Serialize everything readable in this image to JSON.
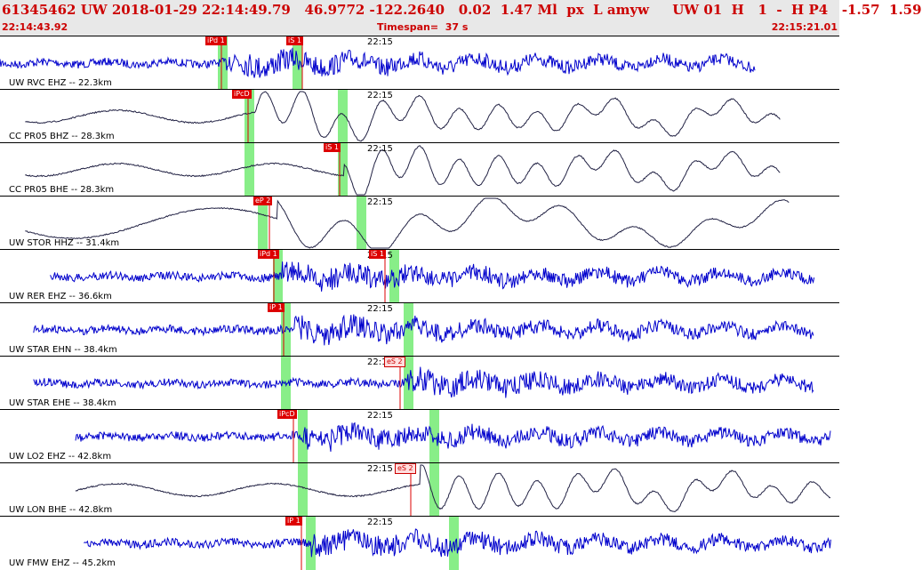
{
  "header": {
    "title": "61345462 UW 2018-01-29 22:14:49.79   46.9772 -122.2640   0.02  1.47 Ml  px  L amyw     UW 01  H   1  -  H P4   -1.57  1.59",
    "start_time": "22:14:43.92",
    "timespan": "Timespan=  37 s",
    "end_time": "22:15:21.01"
  },
  "time_mark": "22:15",
  "colors": {
    "header_text": "#cc0000",
    "trace_blue": "#0000cc",
    "trace_black": "#222244",
    "pick_red": "#dd0000",
    "window_green": "#88ee88"
  },
  "traces": [
    {
      "label": "UW RVC EHZ -- 22.3km",
      "color": "blue",
      "style": "hf",
      "start": 0.0,
      "end": 0.9,
      "onset": 0.27,
      "picks": [
        {
          "text": "iPd 1",
          "pos": 0.245
        },
        {
          "text": "iS 1",
          "pos": 0.341
        }
      ],
      "windows": [
        0.265,
        0.354
      ]
    },
    {
      "label": "CC PR05 BHZ -- 28.3km",
      "color": "black",
      "style": "lf",
      "start": 0.03,
      "end": 0.93,
      "onset": 0.305,
      "picks": [
        {
          "text": "iPcD",
          "pos": 0.277
        }
      ],
      "windows": [
        0.297,
        0.408
      ]
    },
    {
      "label": "CC PR05 BHE -- 28.3km",
      "color": "black",
      "style": "lf",
      "start": 0.03,
      "end": 0.93,
      "onset": 0.41,
      "picks": [
        {
          "text": "iS 1",
          "pos": 0.386
        }
      ],
      "windows": [
        0.297,
        0.408
      ]
    },
    {
      "label": "UW STOR HHZ -- 31.4km",
      "color": "black",
      "style": "vlf",
      "start": 0.03,
      "end": 0.94,
      "onset": 0.33,
      "picks": [
        {
          "text": "eP 2",
          "pos": 0.302
        }
      ],
      "windows": [
        0.312,
        0.43
      ]
    },
    {
      "label": "UW RER EHZ -- 36.6km",
      "color": "blue",
      "style": "hf",
      "start": 0.06,
      "end": 0.97,
      "onset": 0.335,
      "picks": [
        {
          "text": "iPd 1",
          "pos": 0.307
        },
        {
          "text": "iS 1",
          "pos": 0.44
        }
      ],
      "windows": [
        0.33,
        0.469
      ]
    },
    {
      "label": "UW STAR EHN -- 38.4km",
      "color": "blue",
      "style": "hf",
      "start": 0.04,
      "end": 0.97,
      "onset": 0.35,
      "picks": [
        {
          "text": "iP 1",
          "pos": 0.319
        }
      ],
      "windows": [
        0.34,
        0.486
      ]
    },
    {
      "label": "UW STAR EHE -- 38.4km",
      "color": "blue",
      "style": "hf",
      "start": 0.04,
      "end": 0.97,
      "onset": 0.485,
      "picks": [
        {
          "text": "eS 2",
          "pos": 0.458,
          "open": true
        }
      ],
      "windows": [
        0.34,
        0.486
      ]
    },
    {
      "label": "UW LO2 EHZ -- 42.8km",
      "color": "blue",
      "style": "hf",
      "start": 0.09,
      "end": 0.99,
      "onset": 0.36,
      "picks": [
        {
          "text": "iPcD",
          "pos": 0.33
        }
      ],
      "windows": [
        0.36,
        0.517
      ]
    },
    {
      "label": "UW LON BHE -- 42.8km",
      "color": "black",
      "style": "lf",
      "start": 0.09,
      "end": 0.99,
      "onset": 0.5,
      "picks": [
        {
          "text": "eS 2",
          "pos": 0.47,
          "open": true
        }
      ],
      "windows": [
        0.36,
        0.517
      ]
    },
    {
      "label": "UW FMW EHZ -- 45.2km",
      "color": "blue",
      "style": "hf",
      "start": 0.1,
      "end": 0.99,
      "onset": 0.37,
      "picks": [
        {
          "text": "iP 1",
          "pos": 0.34
        }
      ],
      "windows": [
        0.37,
        0.54
      ]
    }
  ]
}
